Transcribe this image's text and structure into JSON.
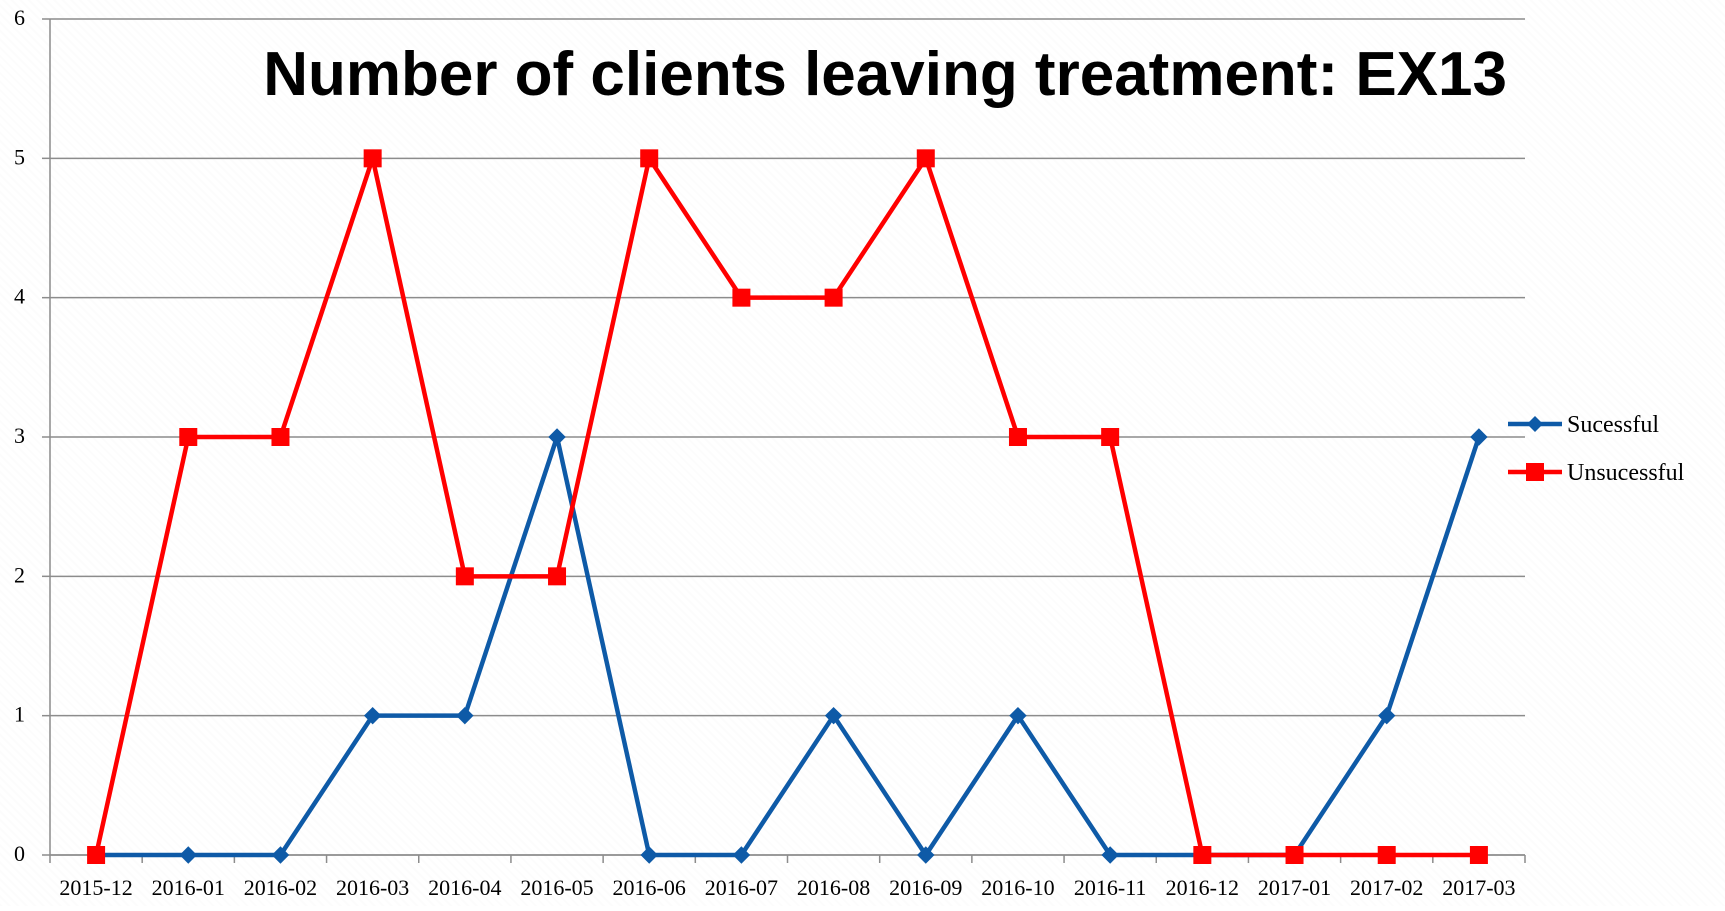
{
  "chart_data": {
    "type": "line",
    "title": "Number of clients leaving treatment: EX13",
    "xlabel": "",
    "ylabel": "",
    "categories": [
      "2015-12",
      "2016-01",
      "2016-02",
      "2016-03",
      "2016-04",
      "2016-05",
      "2016-06",
      "2016-07",
      "2016-08",
      "2016-09",
      "2016-10",
      "2016-11",
      "2016-12",
      "2017-01",
      "2017-02",
      "2017-03"
    ],
    "ylim": [
      0,
      6
    ],
    "yticks": [
      "0",
      "1",
      "2",
      "3",
      "4",
      "5",
      "6"
    ],
    "grid": true,
    "legend_position": "right",
    "series": [
      {
        "name": "Sucessful",
        "color": "#0e5aa7",
        "marker": "diamond",
        "values": [
          0,
          0,
          0,
          1,
          1,
          3,
          0,
          0,
          1,
          0,
          1,
          0,
          0,
          0,
          1,
          3
        ]
      },
      {
        "name": "Unsucessful",
        "color": "#ff0000",
        "marker": "square",
        "values": [
          0,
          3,
          3,
          5,
          2,
          2,
          5,
          4,
          4,
          5,
          3,
          3,
          0,
          0,
          0,
          0
        ]
      }
    ]
  }
}
